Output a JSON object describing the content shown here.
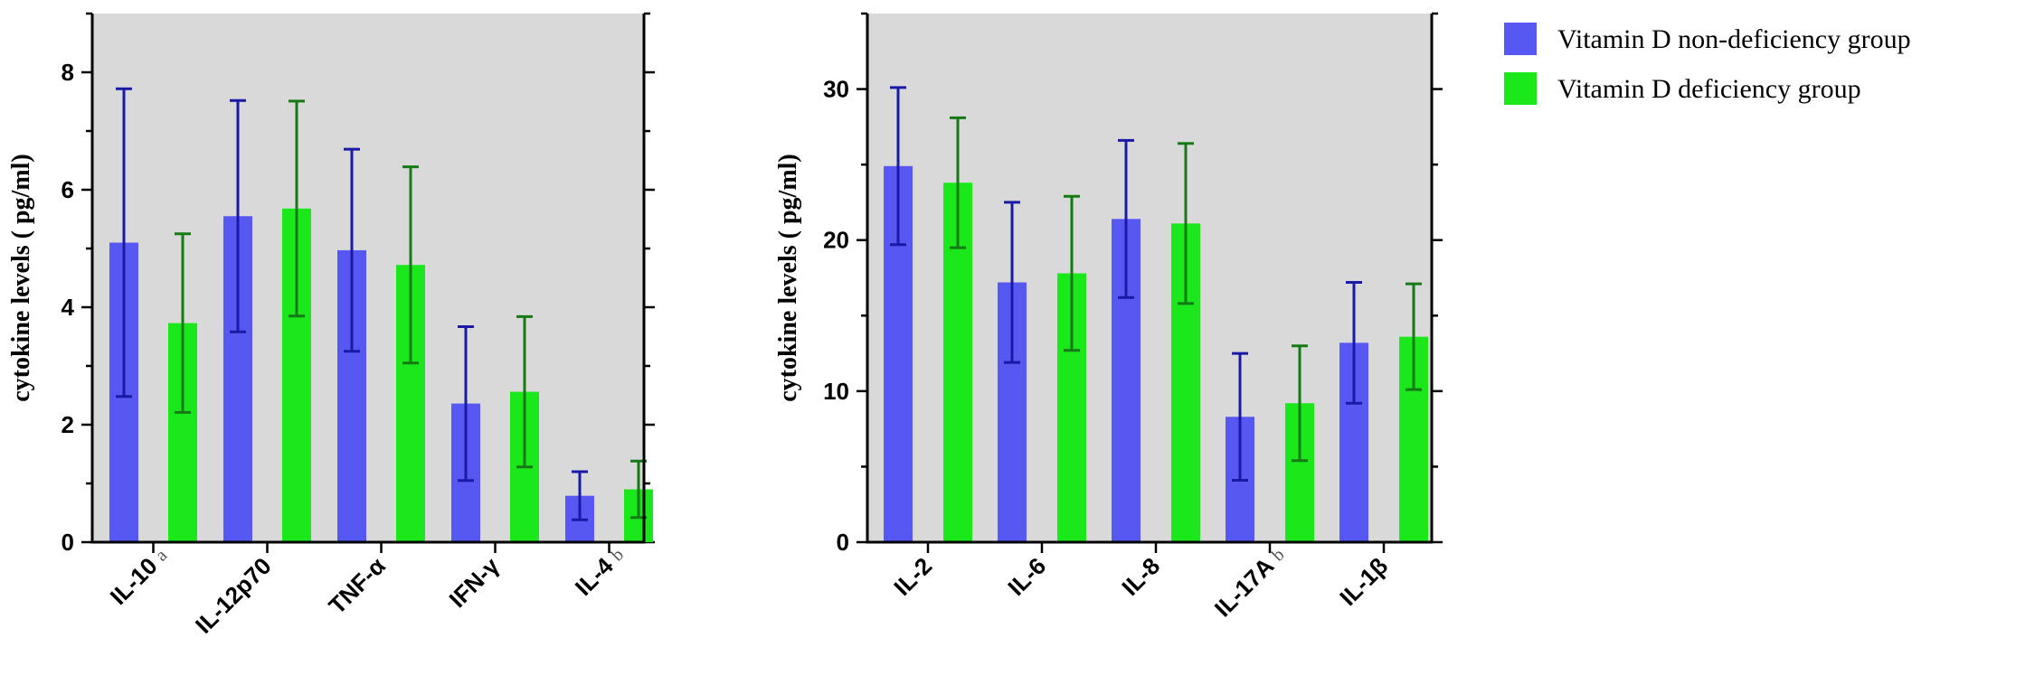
{
  "colors": {
    "plot_bg": "#d9d9d9",
    "group1_fill": "#5757f2",
    "group1_error": "#1a1aa6",
    "group2_fill": "#1be81b",
    "group2_error": "#157a15"
  },
  "legend": {
    "position": "top-right",
    "items": [
      {
        "label": "Vitamin D non-deficiency group",
        "color": "#5757f2"
      },
      {
        "label": "Vitamin D deficiency group",
        "color": "#1be81b"
      }
    ]
  },
  "chart_data": [
    {
      "type": "bar",
      "ylabel": "cytokine levels ( pg/ml)",
      "xlabel": "",
      "ylim": [
        0,
        9
      ],
      "yticks": [
        0,
        2,
        4,
        6,
        8
      ],
      "categories": [
        "IL-10",
        "IL-12p70",
        "TNF-α",
        "IFN-γ",
        "IL-4"
      ],
      "category_marks": [
        "a",
        "",
        "",
        "",
        "b"
      ],
      "series": [
        {
          "name": "Vitamin D non-deficiency group",
          "values": [
            5.1,
            5.55,
            4.97,
            2.36,
            0.79
          ],
          "error": [
            2.62,
            1.97,
            1.72,
            1.31,
            0.41
          ]
        },
        {
          "name": "Vitamin D deficiency group",
          "values": [
            3.73,
            5.68,
            4.72,
            2.56,
            0.9
          ],
          "error": [
            1.52,
            1.83,
            1.67,
            1.28,
            0.48
          ]
        }
      ],
      "grid": false
    },
    {
      "type": "bar",
      "ylabel": "cytokine levels ( pg/ml)",
      "xlabel": "",
      "ylim": [
        0,
        35
      ],
      "yticks": [
        0,
        10,
        20,
        30
      ],
      "categories": [
        "IL-2",
        "IL-6",
        "IL-8",
        "IL-17A",
        "IL-1β"
      ],
      "category_marks": [
        "",
        "",
        "",
        "b",
        ""
      ],
      "series": [
        {
          "name": "Vitamin D non-deficiency group",
          "values": [
            24.9,
            17.2,
            21.4,
            8.3,
            13.2
          ],
          "error": [
            5.2,
            5.3,
            5.2,
            4.2,
            4.0
          ]
        },
        {
          "name": "Vitamin D deficiency group",
          "values": [
            23.8,
            17.8,
            21.1,
            9.2,
            13.6
          ],
          "error": [
            4.3,
            5.1,
            5.3,
            3.8,
            3.5
          ]
        }
      ],
      "grid": false
    }
  ]
}
